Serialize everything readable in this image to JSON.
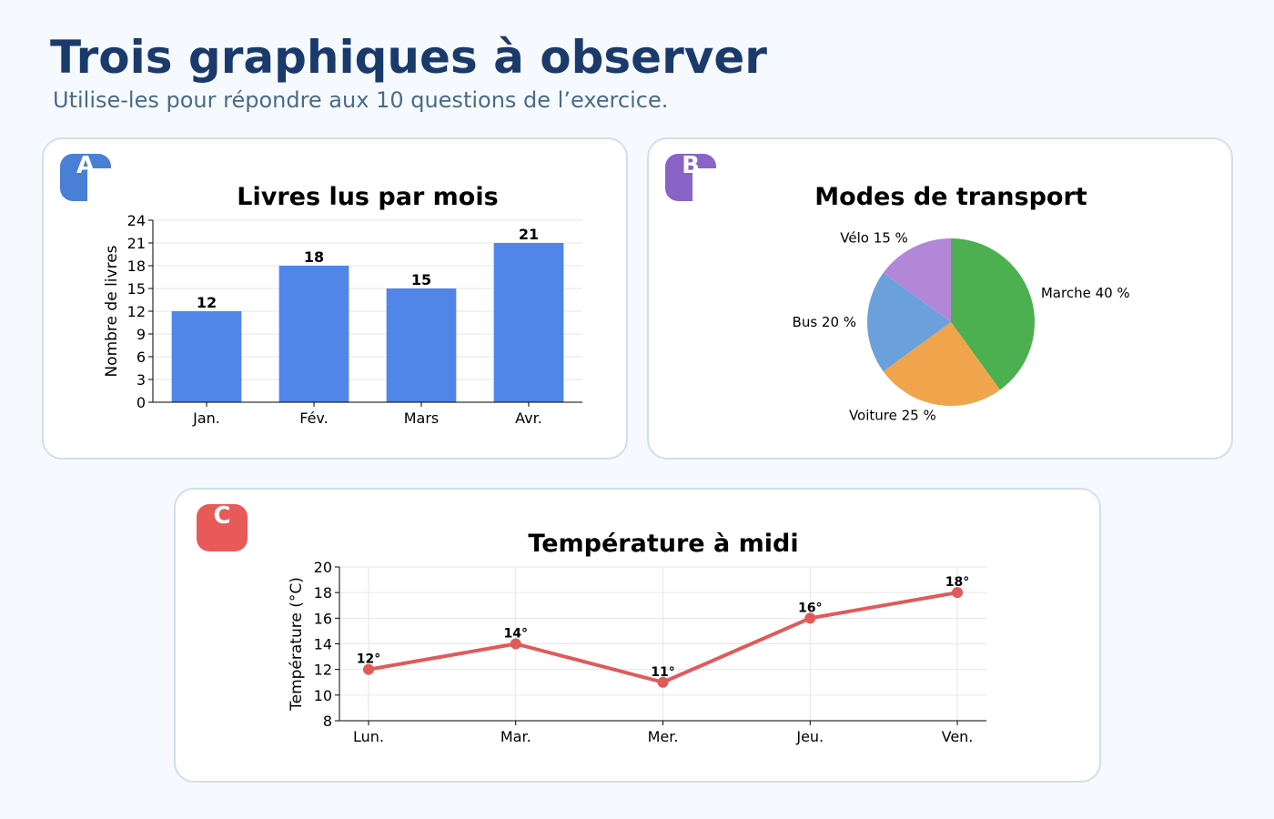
{
  "page": {
    "title": "Trois graphiques à observer",
    "subtitle": "Utilise-les pour répondre aux 10 questions de l’exercice."
  },
  "chart_data": [
    {
      "id": "A",
      "badge": "A",
      "type": "bar",
      "title": "Livres lus par mois",
      "xlabel": "",
      "ylabel": "Nombre de livres",
      "categories": [
        "Jan.",
        "Fév.",
        "Mars",
        "Avr."
      ],
      "values": [
        12,
        18,
        15,
        21
      ],
      "data_labels": [
        "12",
        "18",
        "15",
        "21"
      ],
      "ylim": [
        0,
        24
      ],
      "yticks": [
        0,
        3,
        6,
        9,
        12,
        15,
        18,
        21,
        24
      ],
      "grid": true,
      "color": "#4f86e8"
    },
    {
      "id": "B",
      "badge": "B",
      "type": "pie",
      "title": "Modes de transport",
      "slices": [
        {
          "label": "Marche 40 %",
          "value": 40,
          "color": "#4caf50"
        },
        {
          "label": "Voiture 25 %",
          "value": 25,
          "color": "#f0a44b"
        },
        {
          "label": "Bus 20 %",
          "value": 20,
          "color": "#6aa0dc"
        },
        {
          "label": "Vélo 15 %",
          "value": 15,
          "color": "#b387d8"
        }
      ]
    },
    {
      "id": "C",
      "badge": "C",
      "type": "line",
      "title": "Température à midi",
      "xlabel": "",
      "ylabel": "Température (°C)",
      "categories": [
        "Lun.",
        "Mar.",
        "Mer.",
        "Jeu.",
        "Ven."
      ],
      "values": [
        12,
        14,
        11,
        16,
        18
      ],
      "data_labels": [
        "12°",
        "14°",
        "11°",
        "16°",
        "18°"
      ],
      "ylim": [
        8,
        20
      ],
      "yticks": [
        8,
        10,
        12,
        14,
        16,
        18,
        20
      ],
      "grid": true,
      "color": "#e05a5a"
    }
  ]
}
